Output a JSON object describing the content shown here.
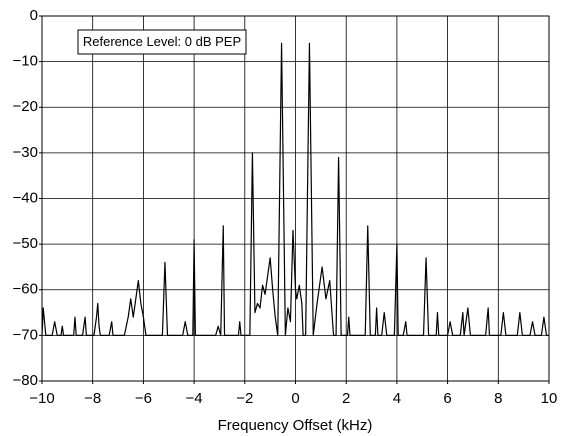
{
  "chart_data": {
    "type": "line",
    "xlabel": "Frequency Offset (kHz)",
    "annotation": "Reference Level: 0 dB PEP",
    "color": "#000000",
    "grid": true,
    "xlim": [
      -10,
      10
    ],
    "ylim": [
      -80,
      0
    ],
    "xticks": [
      {
        "value": -10,
        "label": "−10"
      },
      {
        "value": -8,
        "label": "−8"
      },
      {
        "value": -6,
        "label": "−6"
      },
      {
        "value": -4,
        "label": "−4"
      },
      {
        "value": -2,
        "label": "−2"
      },
      0,
      2,
      4,
      6,
      8,
      10
    ],
    "yticks": [
      0,
      {
        "value": -10,
        "label": "−10"
      },
      {
        "value": -20,
        "label": "−20"
      },
      {
        "value": -30,
        "label": "−30"
      },
      {
        "value": -40,
        "label": "−40"
      },
      {
        "value": -50,
        "label": "−50"
      },
      {
        "value": -60,
        "label": "−60"
      },
      {
        "value": -70,
        "label": "−70"
      },
      {
        "value": -80,
        "label": "−80"
      }
    ],
    "x": [
      -10,
      -9.95,
      -9.85,
      -9.6,
      -9.5,
      -9.4,
      -9.25,
      -9.2,
      -9.15,
      -8.75,
      -8.7,
      -8.65,
      -8.4,
      -8.3,
      -8.25,
      -7.95,
      -7.85,
      -7.8,
      -7.75,
      -7.7,
      -7.35,
      -7.25,
      -7.2,
      -6.75,
      -6.6,
      -6.5,
      -6.4,
      -6.3,
      -6.2,
      -6.1,
      -6.0,
      -5.9,
      -5.25,
      -5.15,
      -5.05,
      -4.45,
      -4.35,
      -4.25,
      -4.05,
      -4.0,
      -3.95,
      -3.15,
      -3.05,
      -2.95,
      -2.85,
      -2.8,
      -2.25,
      -2.2,
      -2.15,
      -1.8,
      -1.7,
      -1.6,
      -1.5,
      -1.4,
      -1.3,
      -1.2,
      -1.0,
      -0.9,
      -0.8,
      -0.7,
      -0.55,
      -0.4,
      -0.3,
      -0.2,
      -0.1,
      0,
      0.05,
      0.15,
      0.25,
      0.3,
      0.4,
      0.55,
      0.7,
      0.85,
      1.05,
      1.2,
      1.35,
      1.5,
      1.6,
      1.7,
      1.8,
      2.05,
      2.1,
      2.15,
      2.75,
      2.85,
      2.95,
      3.15,
      3.2,
      3.25,
      3.4,
      3.5,
      3.6,
      3.9,
      4.0,
      4.05,
      4.25,
      4.35,
      4.4,
      5.05,
      5.15,
      5.25,
      5.55,
      5.6,
      5.65,
      6.0,
      6.1,
      6.2,
      6.5,
      6.6,
      6.65,
      6.8,
      6.9,
      7.5,
      7.6,
      7.65,
      8.1,
      8.2,
      8.3,
      8.75,
      8.85,
      8.95,
      9.25,
      9.35,
      9.45,
      9.7,
      9.8,
      9.9,
      10
    ],
    "values": [
      -70,
      -64,
      -70,
      -70,
      -67,
      -70,
      -70,
      -68,
      -70,
      -70,
      -66,
      -70,
      -70,
      -66,
      -70,
      -70,
      -66,
      -63,
      -68,
      -70,
      -70,
      -67,
      -70,
      -70,
      -66,
      -62,
      -66,
      -62,
      -58,
      -63,
      -66,
      -70,
      -70,
      -54,
      -70,
      -70,
      -67,
      -70,
      -70,
      -49,
      -70,
      -70,
      -68,
      -70,
      -46,
      -70,
      -70,
      -67,
      -70,
      -70,
      -30,
      -65,
      -63,
      -64,
      -59,
      -61,
      -53,
      -60,
      -66,
      -70,
      -6,
      -70,
      -64,
      -67,
      -47,
      -60,
      -62,
      -59,
      -63,
      -70,
      -70,
      -6,
      -70,
      -63,
      -55,
      -62,
      -58,
      -70,
      -70,
      -31,
      -70,
      -70,
      -66,
      -70,
      -70,
      -46,
      -70,
      -70,
      -64,
      -70,
      -70,
      -65,
      -70,
      -70,
      -50,
      -70,
      -70,
      -67,
      -70,
      -70,
      -53,
      -70,
      -70,
      -65,
      -70,
      -70,
      -67,
      -70,
      -70,
      -65,
      -70,
      -64,
      -70,
      -70,
      -64,
      -70,
      -70,
      -65,
      -70,
      -70,
      -65,
      -70,
      -70,
      -67,
      -70,
      -70,
      -66,
      -70,
      -70
    ]
  }
}
